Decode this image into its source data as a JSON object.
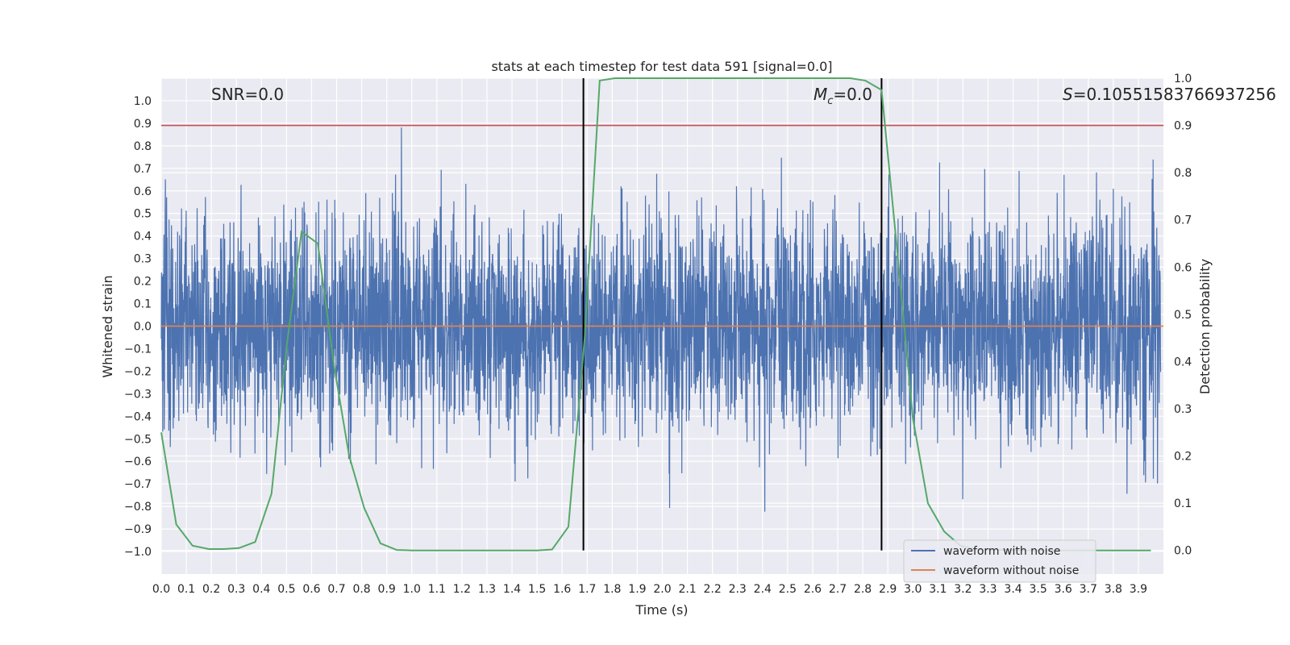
{
  "chart_data": {
    "type": "line",
    "title": "stats at each timestep for test data 591 [signal=0.0]",
    "xlabel": "Time (s)",
    "ylabel": "Whitened strain",
    "ylabel_right": "Detection probability",
    "xlim": [
      0.0,
      4.0
    ],
    "ylim": [
      -1.1,
      1.1
    ],
    "ylim_right": [
      -0.05,
      1.0
    ],
    "x_ticks": [
      "0.0",
      "0.1",
      "0.2",
      "0.3",
      "0.4",
      "0.5",
      "0.6",
      "0.7",
      "0.8",
      "0.9",
      "1.0",
      "1.1",
      "1.2",
      "1.3",
      "1.4",
      "1.5",
      "1.6",
      "1.7",
      "1.8",
      "1.9",
      "2.0",
      "2.1",
      "2.2",
      "2.3",
      "2.4",
      "2.5",
      "2.6",
      "2.7",
      "2.8",
      "2.9",
      "3.0",
      "3.1",
      "3.2",
      "3.3",
      "3.4",
      "3.5",
      "3.6",
      "3.7",
      "3.8",
      "3.9"
    ],
    "y_ticks": [
      "−1.0",
      "−0.9",
      "−0.8",
      "−0.7",
      "−0.6",
      "−0.5",
      "−0.4",
      "−0.3",
      "−0.2",
      "−0.1",
      "0.0",
      "0.1",
      "0.2",
      "0.3",
      "0.4",
      "0.5",
      "0.6",
      "0.7",
      "0.8",
      "0.9",
      "1.0"
    ],
    "y_ticks_right": [
      "0.0",
      "0.1",
      "0.2",
      "0.3",
      "0.4",
      "0.5",
      "0.6",
      "0.7",
      "0.8",
      "0.9",
      "1.0"
    ],
    "grid": true,
    "legend_position": "lower-right",
    "annotations": {
      "snr": "SNR=0.0",
      "mc_symbol": "M",
      "mc_subscript": "c",
      "mc_value": "=0.0",
      "s_symbol": "S",
      "s_value": "=0.10551583766937256"
    },
    "threshold": {
      "value": 0.9,
      "axis": "right",
      "color": "#c44e52"
    },
    "vlines": [
      1.685,
      2.875
    ],
    "series": [
      {
        "name": "waveform with noise",
        "color": "#4c72b0",
        "description": "dense noisy whitened strain, roughly within -1.0 to 1.0"
      },
      {
        "name": "waveform without noise",
        "color": "#dd8452",
        "values_constant": 0.0
      },
      {
        "color": "#55a868",
        "axis": "right",
        "x": [
          0.0,
          0.06,
          0.125,
          0.19,
          0.25,
          0.31,
          0.375,
          0.44,
          0.5,
          0.56,
          0.625,
          0.69,
          0.75,
          0.81,
          0.875,
          0.94,
          1.0,
          1.5,
          1.56,
          1.625,
          1.69,
          1.75,
          1.81,
          2.0,
          2.5,
          2.75,
          2.81,
          2.875,
          2.94,
          3.0,
          3.06,
          3.125,
          3.19,
          3.25,
          3.5,
          3.95
        ],
        "values": [
          0.25,
          0.055,
          0.01,
          0.003,
          0.003,
          0.005,
          0.018,
          0.12,
          0.43,
          0.675,
          0.65,
          0.39,
          0.2,
          0.09,
          0.015,
          0.001,
          0.0,
          0.0,
          0.002,
          0.05,
          0.45,
          0.995,
          1.0,
          1.0,
          1.0,
          1.0,
          0.995,
          0.975,
          0.62,
          0.28,
          0.1,
          0.04,
          0.01,
          0.002,
          0.0,
          0.0
        ]
      }
    ]
  }
}
